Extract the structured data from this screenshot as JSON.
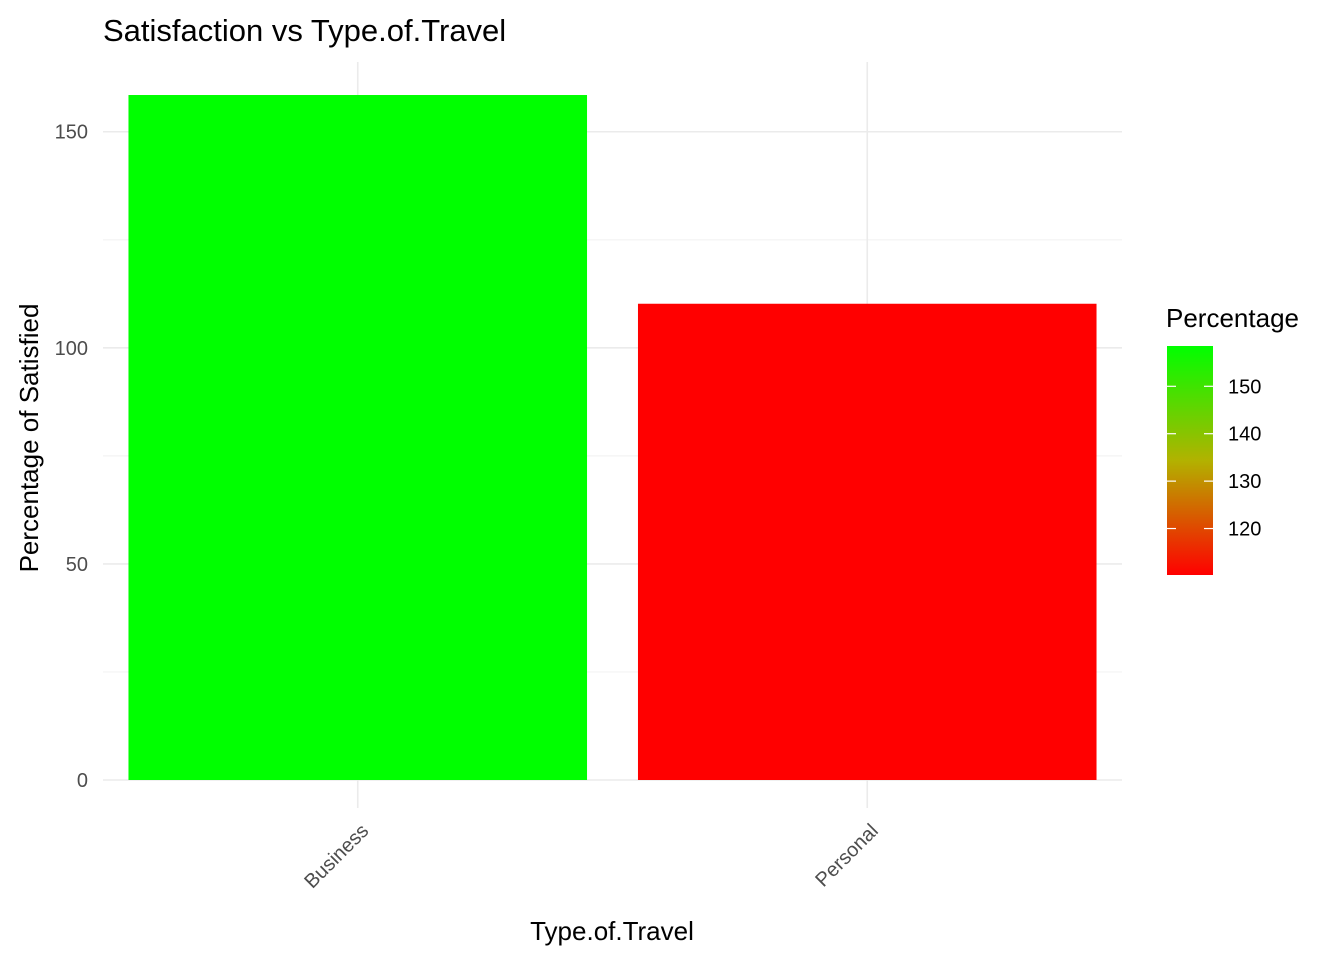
{
  "chart_data": {
    "type": "bar",
    "title": "Satisfaction vs Type.of.Travel",
    "xlabel": "Type.of.Travel",
    "ylabel": "Percentage of Satisfied",
    "categories": [
      "Business",
      "Personal"
    ],
    "values": [
      158.5,
      110.2
    ],
    "ylim": [
      0,
      165
    ],
    "yticks": [
      0,
      50,
      100,
      150
    ],
    "grid": true,
    "legend": {
      "title": "Percentage",
      "placement": "right",
      "ticks": [
        120,
        130,
        140,
        150
      ],
      "range": [
        110.2,
        158.5
      ],
      "low_color": "#ff0000",
      "high_color": "#00ff00"
    }
  }
}
